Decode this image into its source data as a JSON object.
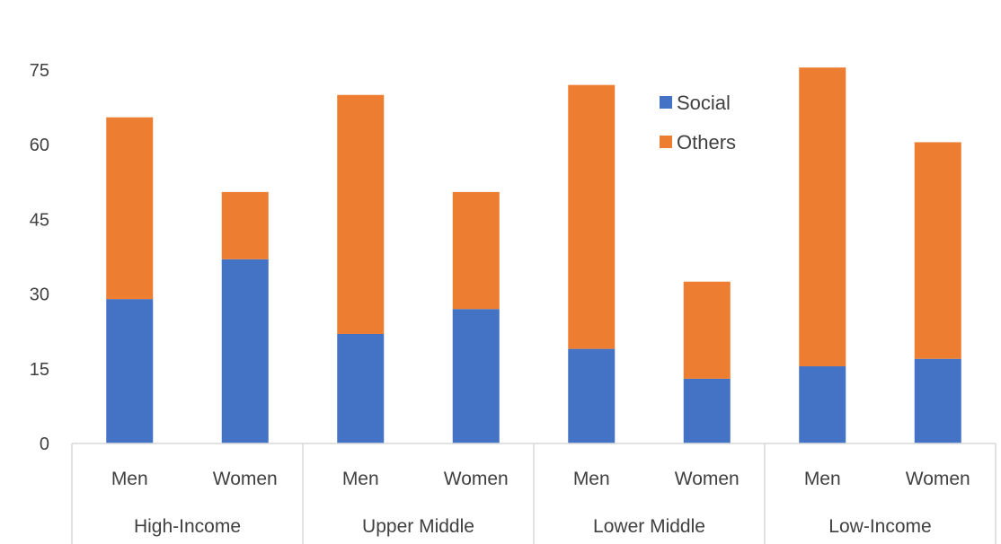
{
  "chart_data": {
    "type": "bar",
    "stacked": true,
    "groups": [
      "High-Income",
      "Upper Middle",
      "Lower Middle",
      "Low-Income"
    ],
    "categories": [
      "Men",
      "Women",
      "Men",
      "Women",
      "Men",
      "Women",
      "Men",
      "Women"
    ],
    "series": [
      {
        "name": "Social",
        "color": "#4472C4",
        "values": [
          29,
          37,
          22,
          27,
          19,
          13,
          15.5,
          17
        ]
      },
      {
        "name": "Others",
        "color": "#ED7D31",
        "values": [
          36.5,
          13.5,
          48,
          23.5,
          53,
          19.5,
          60,
          43.5
        ]
      }
    ],
    "ylim": [
      0,
      75
    ],
    "yticks": [
      "0",
      "15",
      "30",
      "45",
      "60",
      "75"
    ],
    "ytick_values": [
      0,
      15,
      30,
      45,
      60,
      75
    ],
    "grid": false,
    "legend_position": "top-center",
    "title": "",
    "xlabel": "",
    "ylabel": ""
  }
}
